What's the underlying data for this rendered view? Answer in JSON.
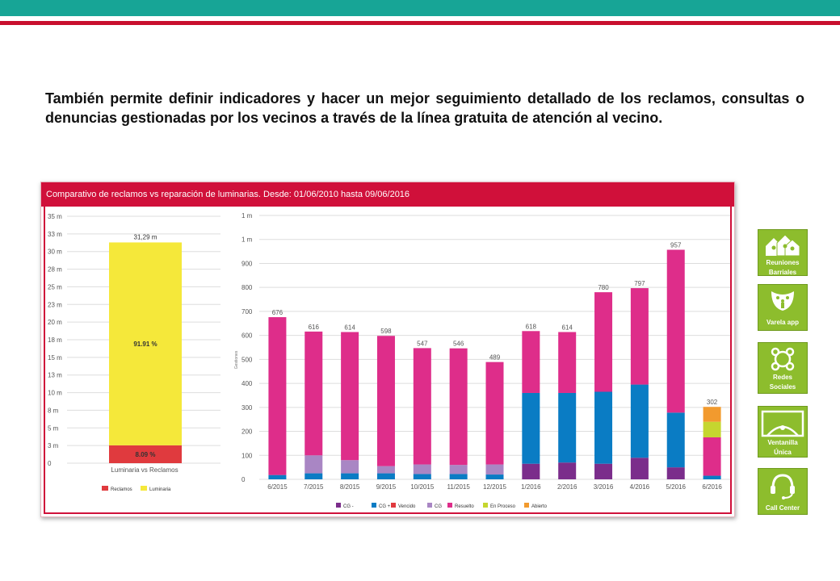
{
  "intro_text": "También permite definir indicadores y hacer un mejor seguimiento detallado de los reclamos, consultas o denuncias gestionadas por los vecinos a través de la línea gratuita de atención al vecino.",
  "panel": {
    "title": "Comparativo de reclamos vs reparación de luminarias. Desde: 01/06/2010 hasta 09/06/2016",
    "header_color": "#d0103a"
  },
  "sidebar": {
    "items": [
      {
        "label1": "Reuniones",
        "label2": "Barriales",
        "icon": "houses-icon"
      },
      {
        "label1": "Varela app",
        "label2": "",
        "icon": "app-icon"
      },
      {
        "label1": "Redes",
        "label2": "Sociales",
        "icon": "network-icon"
      },
      {
        "label1": "Ventanilla",
        "label2": "Única",
        "icon": "window-icon"
      },
      {
        "label1": "Call Center",
        "label2": "",
        "icon": "headset-icon"
      }
    ],
    "color": "#8dbd2d"
  },
  "chart_data": [
    {
      "type": "bar",
      "stacked": true,
      "categories": [
        "Luminaria vs Reclamos"
      ],
      "xlabel": "Luminaria vs Reclamos",
      "yticks": [
        "0",
        "3 m",
        "5 m",
        "8 m",
        "10 m",
        "13 m",
        "15 m",
        "18 m",
        "20 m",
        "23 m",
        "25 m",
        "28 m",
        "30 m",
        "33 m",
        "35 m"
      ],
      "ylim": [
        0,
        35
      ],
      "total_label": "31,29 m",
      "series": [
        {
          "name": "Reclamos",
          "value": 2.53,
          "pct_label": "8.09 %",
          "color": "#e03a3e"
        },
        {
          "name": "Luminaria",
          "value": 28.76,
          "pct_label": "91.91 %",
          "color": "#f5e83a"
        }
      ],
      "legend": [
        "Reclamos",
        "Luminaria"
      ],
      "legend_position": "bottom",
      "grid": true
    },
    {
      "type": "bar",
      "stacked": true,
      "categories": [
        "6/2015",
        "7/2015",
        "8/2015",
        "9/2015",
        "10/2015",
        "11/2015",
        "12/2015",
        "1/2016",
        "2/2016",
        "3/2016",
        "4/2016",
        "5/2016",
        "6/2016"
      ],
      "totals": [
        676,
        616,
        614,
        598,
        547,
        546,
        489,
        618,
        614,
        780,
        797,
        957,
        302
      ],
      "ylabel": "Gestiones",
      "yticks": [
        "0",
        "100",
        "200",
        "300",
        "400",
        "500",
        "600",
        "700",
        "800",
        "900",
        "1 m",
        "1 m"
      ],
      "ylim": [
        0,
        1100
      ],
      "series": [
        {
          "name": "CG -",
          "color": "#7b2d8b",
          "values": [
            0,
            0,
            0,
            0,
            0,
            0,
            0,
            65,
            70,
            65,
            90,
            50,
            0
          ]
        },
        {
          "name": "CG +",
          "color": "#0a7cc4",
          "values": [
            18,
            25,
            25,
            25,
            22,
            22,
            20,
            295,
            290,
            300,
            305,
            228,
            15
          ]
        },
        {
          "name": "Vencido",
          "color": "#e03a3e",
          "values": [
            0,
            0,
            0,
            0,
            0,
            0,
            0,
            0,
            0,
            0,
            0,
            0,
            0
          ]
        },
        {
          "name": "CG",
          "color": "#a986c4",
          "values": [
            0,
            75,
            55,
            30,
            40,
            38,
            42,
            0,
            0,
            0,
            0,
            0,
            0
          ]
        },
        {
          "name": "Resuelto",
          "color": "#de2d8a",
          "values": [
            658,
            516,
            534,
            543,
            485,
            486,
            427,
            258,
            254,
            415,
            402,
            679,
            160
          ]
        },
        {
          "name": "En Proceso",
          "color": "#c5d62f",
          "values": [
            0,
            0,
            0,
            0,
            0,
            0,
            0,
            0,
            0,
            0,
            0,
            0,
            65
          ]
        },
        {
          "name": "Abierto",
          "color": "#f29a2e",
          "values": [
            0,
            0,
            0,
            0,
            0,
            0,
            0,
            0,
            0,
            0,
            0,
            0,
            62
          ]
        }
      ],
      "legend_position": "bottom",
      "grid": true
    }
  ]
}
